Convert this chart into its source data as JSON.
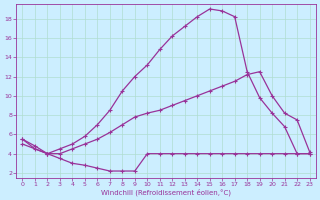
{
  "xlabel": "Windchill (Refroidissement éolien,°C)",
  "bg_color": "#cceeff",
  "grid_color": "#b0ddd0",
  "line_color": "#993399",
  "xlim": [
    -0.5,
    23.5
  ],
  "ylim": [
    1.5,
    19.5
  ],
  "xticks": [
    0,
    1,
    2,
    3,
    4,
    5,
    6,
    7,
    8,
    9,
    10,
    11,
    12,
    13,
    14,
    15,
    16,
    17,
    18,
    19,
    20,
    21,
    22,
    23
  ],
  "yticks": [
    2,
    4,
    6,
    8,
    10,
    12,
    14,
    16,
    18
  ],
  "line_upper_x": [
    0,
    1,
    2,
    3,
    4,
    5,
    6,
    7,
    8,
    9,
    10,
    11,
    12,
    13,
    14,
    15,
    16,
    17,
    18,
    19,
    20,
    21,
    22,
    23
  ],
  "line_upper_y": [
    5.5,
    4.5,
    4.0,
    4.5,
    5.0,
    5.8,
    7.0,
    8.5,
    10.5,
    12.0,
    13.2,
    14.8,
    16.2,
    17.2,
    18.2,
    19.0,
    18.8,
    18.2,
    12.5,
    9.8,
    8.2,
    6.8,
    4.0,
    4.0
  ],
  "line_mid_x": [
    0,
    2,
    3,
    4,
    5,
    6,
    7,
    8,
    9,
    10,
    11,
    12,
    13,
    14,
    15,
    16,
    17,
    18,
    19,
    20,
    21,
    22,
    23
  ],
  "line_mid_y": [
    5.0,
    4.0,
    4.0,
    4.5,
    5.0,
    5.5,
    6.2,
    7.0,
    7.8,
    8.2,
    8.5,
    9.0,
    9.5,
    10.0,
    10.5,
    11.0,
    11.5,
    12.2,
    12.5,
    10.0,
    8.2,
    7.5,
    4.2
  ],
  "line_low_x": [
    0,
    1,
    2,
    3,
    4,
    5,
    6,
    7,
    8,
    9,
    10,
    11,
    12,
    13,
    14,
    15,
    16,
    17,
    18,
    19,
    20,
    21,
    22,
    23
  ],
  "line_low_y": [
    5.5,
    4.8,
    4.0,
    3.5,
    3.0,
    2.8,
    2.5,
    2.2,
    2.2,
    2.2,
    4.0,
    4.0,
    4.0,
    4.0,
    4.0,
    4.0,
    4.0,
    4.0,
    4.0,
    4.0,
    4.0,
    4.0,
    4.0,
    4.0
  ]
}
